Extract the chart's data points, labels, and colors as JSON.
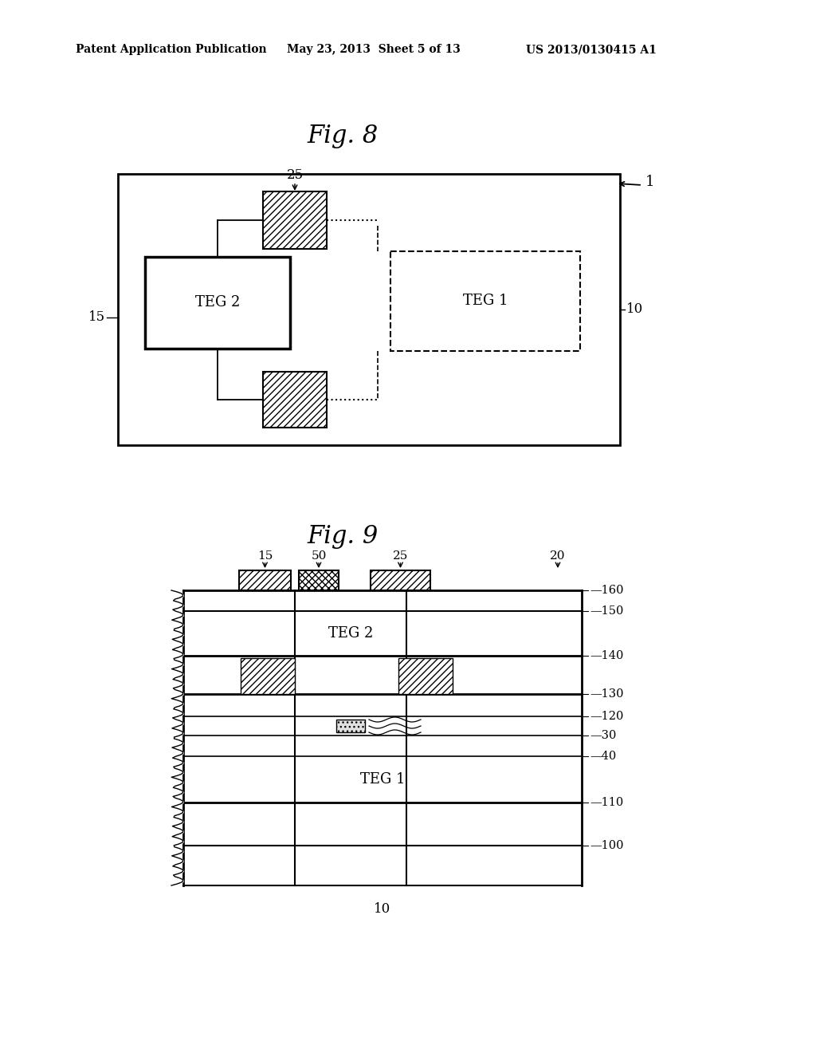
{
  "bg_color": "#ffffff",
  "header_left": "Patent Application Publication",
  "header_mid": "May 23, 2013  Sheet 5 of 13",
  "header_right": "US 2013/0130415 A1",
  "fig8_title": "Fig. 8",
  "fig9_title": "Fig. 9"
}
